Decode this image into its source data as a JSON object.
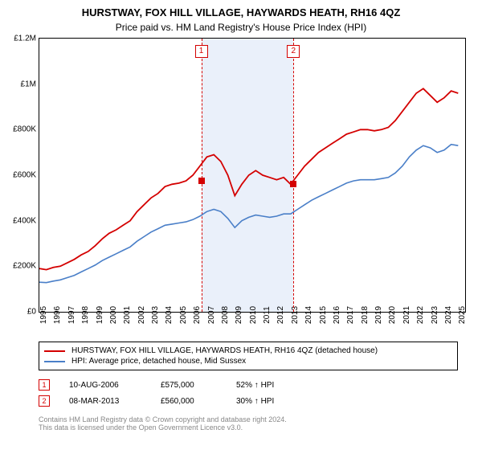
{
  "title": "HURSTWAY, FOX HILL VILLAGE, HAYWARDS HEATH, RH16 4QZ",
  "subtitle": "Price paid vs. HM Land Registry's House Price Index (HPI)",
  "title_fontsize": 13,
  "subtitle_fontsize": 12,
  "chart": {
    "background_color": "#ffffff",
    "border_color": "#000000",
    "x": {
      "min": 1995,
      "max": 2025.5,
      "ticks": [
        1995,
        1996,
        1997,
        1998,
        1999,
        2000,
        2001,
        2002,
        2003,
        2004,
        2005,
        2006,
        2007,
        2008,
        2009,
        2010,
        2011,
        2012,
        2013,
        2014,
        2015,
        2016,
        2017,
        2018,
        2019,
        2020,
        2021,
        2022,
        2023,
        2024,
        2025
      ],
      "tick_fontsize": 10
    },
    "y": {
      "min": 0,
      "max": 1200000,
      "ticks": [
        0,
        200000,
        400000,
        600000,
        800000,
        1000000,
        1200000
      ],
      "tick_labels": [
        "£0",
        "£200K",
        "£400K",
        "£600K",
        "£800K",
        "£1M",
        "£1.2M"
      ],
      "tick_fontsize": 10
    },
    "shaded_band": {
      "x_start": 2006.6,
      "x_end": 2013.2,
      "color": "#eaf0fa"
    },
    "series": [
      {
        "name": "property",
        "label": "HURSTWAY, FOX HILL VILLAGE, HAYWARDS HEATH, RH16 4QZ (detached house)",
        "color": "#d40000",
        "line_width": 1.8,
        "points": [
          [
            1995,
            190000
          ],
          [
            1995.5,
            185000
          ],
          [
            1996,
            195000
          ],
          [
            1996.5,
            200000
          ],
          [
            1997,
            215000
          ],
          [
            1997.5,
            230000
          ],
          [
            1998,
            250000
          ],
          [
            1998.5,
            265000
          ],
          [
            1999,
            290000
          ],
          [
            1999.5,
            320000
          ],
          [
            2000,
            345000
          ],
          [
            2000.5,
            360000
          ],
          [
            2001,
            380000
          ],
          [
            2001.5,
            400000
          ],
          [
            2002,
            440000
          ],
          [
            2002.5,
            470000
          ],
          [
            2003,
            500000
          ],
          [
            2003.5,
            520000
          ],
          [
            2004,
            550000
          ],
          [
            2004.5,
            560000
          ],
          [
            2005,
            565000
          ],
          [
            2005.5,
            575000
          ],
          [
            2006,
            600000
          ],
          [
            2006.5,
            640000
          ],
          [
            2007,
            680000
          ],
          [
            2007.5,
            690000
          ],
          [
            2008,
            660000
          ],
          [
            2008.5,
            600000
          ],
          [
            2009,
            510000
          ],
          [
            2009.5,
            560000
          ],
          [
            2010,
            600000
          ],
          [
            2010.5,
            620000
          ],
          [
            2011,
            600000
          ],
          [
            2011.5,
            590000
          ],
          [
            2012,
            580000
          ],
          [
            2012.5,
            590000
          ],
          [
            2013,
            560000
          ],
          [
            2013.5,
            600000
          ],
          [
            2014,
            640000
          ],
          [
            2014.5,
            670000
          ],
          [
            2015,
            700000
          ],
          [
            2015.5,
            720000
          ],
          [
            2016,
            740000
          ],
          [
            2016.5,
            760000
          ],
          [
            2017,
            780000
          ],
          [
            2017.5,
            790000
          ],
          [
            2018,
            800000
          ],
          [
            2018.5,
            800000
          ],
          [
            2019,
            795000
          ],
          [
            2019.5,
            800000
          ],
          [
            2020,
            810000
          ],
          [
            2020.5,
            840000
          ],
          [
            2021,
            880000
          ],
          [
            2021.5,
            920000
          ],
          [
            2022,
            960000
          ],
          [
            2022.5,
            980000
          ],
          [
            2023,
            950000
          ],
          [
            2023.5,
            920000
          ],
          [
            2024,
            940000
          ],
          [
            2024.5,
            970000
          ],
          [
            2025,
            960000
          ]
        ]
      },
      {
        "name": "hpi",
        "label": "HPI: Average price, detached house, Mid Sussex",
        "color": "#4a7fc8",
        "line_width": 1.6,
        "points": [
          [
            1995,
            130000
          ],
          [
            1995.5,
            128000
          ],
          [
            1996,
            135000
          ],
          [
            1996.5,
            140000
          ],
          [
            1997,
            150000
          ],
          [
            1997.5,
            160000
          ],
          [
            1998,
            175000
          ],
          [
            1998.5,
            190000
          ],
          [
            1999,
            205000
          ],
          [
            1999.5,
            225000
          ],
          [
            2000,
            240000
          ],
          [
            2000.5,
            255000
          ],
          [
            2001,
            270000
          ],
          [
            2001.5,
            285000
          ],
          [
            2002,
            310000
          ],
          [
            2002.5,
            330000
          ],
          [
            2003,
            350000
          ],
          [
            2003.5,
            365000
          ],
          [
            2004,
            380000
          ],
          [
            2004.5,
            385000
          ],
          [
            2005,
            390000
          ],
          [
            2005.5,
            395000
          ],
          [
            2006,
            405000
          ],
          [
            2006.5,
            420000
          ],
          [
            2007,
            440000
          ],
          [
            2007.5,
            450000
          ],
          [
            2008,
            440000
          ],
          [
            2008.5,
            410000
          ],
          [
            2009,
            370000
          ],
          [
            2009.5,
            400000
          ],
          [
            2010,
            415000
          ],
          [
            2010.5,
            425000
          ],
          [
            2011,
            420000
          ],
          [
            2011.5,
            415000
          ],
          [
            2012,
            420000
          ],
          [
            2012.5,
            430000
          ],
          [
            2013,
            430000
          ],
          [
            2013.5,
            450000
          ],
          [
            2014,
            470000
          ],
          [
            2014.5,
            490000
          ],
          [
            2015,
            505000
          ],
          [
            2015.5,
            520000
          ],
          [
            2016,
            535000
          ],
          [
            2016.5,
            550000
          ],
          [
            2017,
            565000
          ],
          [
            2017.5,
            575000
          ],
          [
            2018,
            580000
          ],
          [
            2018.5,
            580000
          ],
          [
            2019,
            580000
          ],
          [
            2019.5,
            585000
          ],
          [
            2020,
            590000
          ],
          [
            2020.5,
            610000
          ],
          [
            2021,
            640000
          ],
          [
            2021.5,
            680000
          ],
          [
            2022,
            710000
          ],
          [
            2022.5,
            730000
          ],
          [
            2023,
            720000
          ],
          [
            2023.5,
            700000
          ],
          [
            2024,
            710000
          ],
          [
            2024.5,
            735000
          ],
          [
            2025,
            730000
          ]
        ]
      }
    ],
    "transactions": [
      {
        "n": "1",
        "x": 2006.6,
        "price": 575000,
        "date": "10-AUG-2006",
        "price_label": "£575,000",
        "diff": "52% ↑ HPI"
      },
      {
        "n": "2",
        "x": 2013.2,
        "price": 560000,
        "date": "08-MAR-2013",
        "price_label": "£560,000",
        "diff": "30% ↑ HPI"
      }
    ],
    "transaction_box_color": "#d40000",
    "marker_color": "#d40000",
    "vline_color": "#d40000"
  },
  "footer": {
    "line1": "Contains HM Land Registry data © Crown copyright and database right 2024.",
    "line2": "This data is licensed under the Open Government Licence v3.0.",
    "color": "#888888",
    "fontsize": 9
  }
}
